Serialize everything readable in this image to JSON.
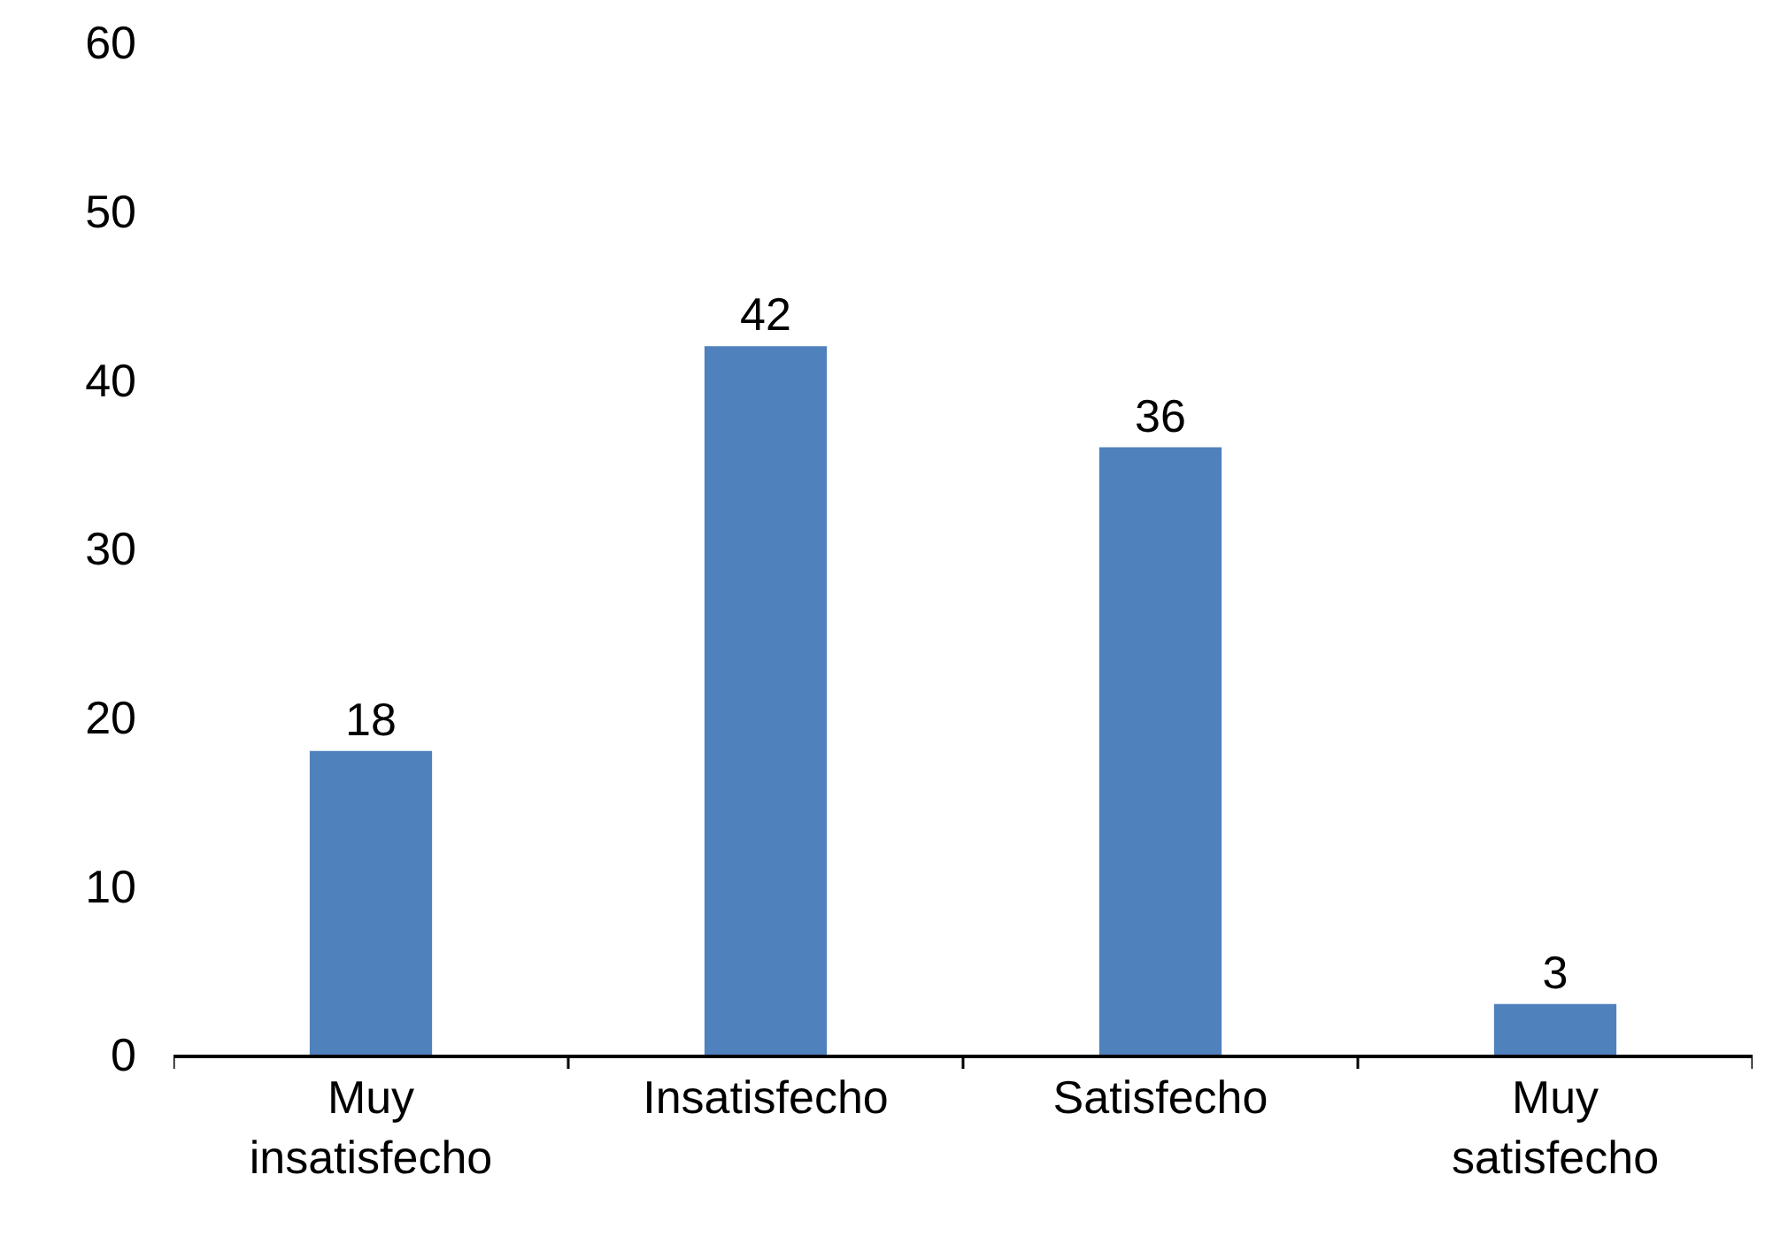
{
  "chart_data": {
    "type": "bar",
    "categories": [
      "Muy insatisfecho",
      "Insatisfecho",
      "Satisfecho",
      "Muy satisfecho"
    ],
    "values": [
      18,
      42,
      36,
      3
    ],
    "color": "#4f81bd",
    "ylim": [
      0,
      60
    ],
    "yticks": [
      0,
      10,
      20,
      30,
      40,
      50,
      60
    ],
    "data_labels": true
  }
}
